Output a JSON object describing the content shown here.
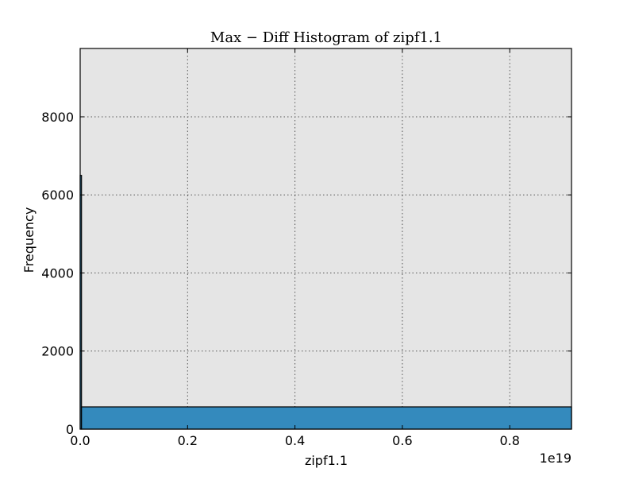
{
  "chart_data": {
    "type": "bar",
    "title": "Max − Diff Histogram of zipf1.1",
    "xlabel": "zipf1.1",
    "ylabel": "Frequency",
    "x_offset_label": "1e19",
    "xlim": [
      0,
      0.915
    ],
    "ylim": [
      0,
      9750
    ],
    "x_ticks": [
      0.0,
      0.2,
      0.4,
      0.6,
      0.8
    ],
    "x_tick_labels": [
      "0.0",
      "0.2",
      "0.4",
      "0.6",
      "0.8"
    ],
    "y_ticks": [
      0,
      2000,
      4000,
      6000,
      8000
    ],
    "y_tick_labels": [
      "0",
      "2000",
      "4000",
      "6000",
      "8000"
    ],
    "grid": true,
    "bins": [
      {
        "x0": 0.0,
        "x1": 0.0025,
        "value": 6500
      },
      {
        "x0": 0.0025,
        "x1": 0.915,
        "value": 570
      }
    ],
    "colors": {
      "bar": "#348abd",
      "plot_bg": "#e5e5e5",
      "grid": "#555555",
      "edge": "#000000"
    }
  }
}
